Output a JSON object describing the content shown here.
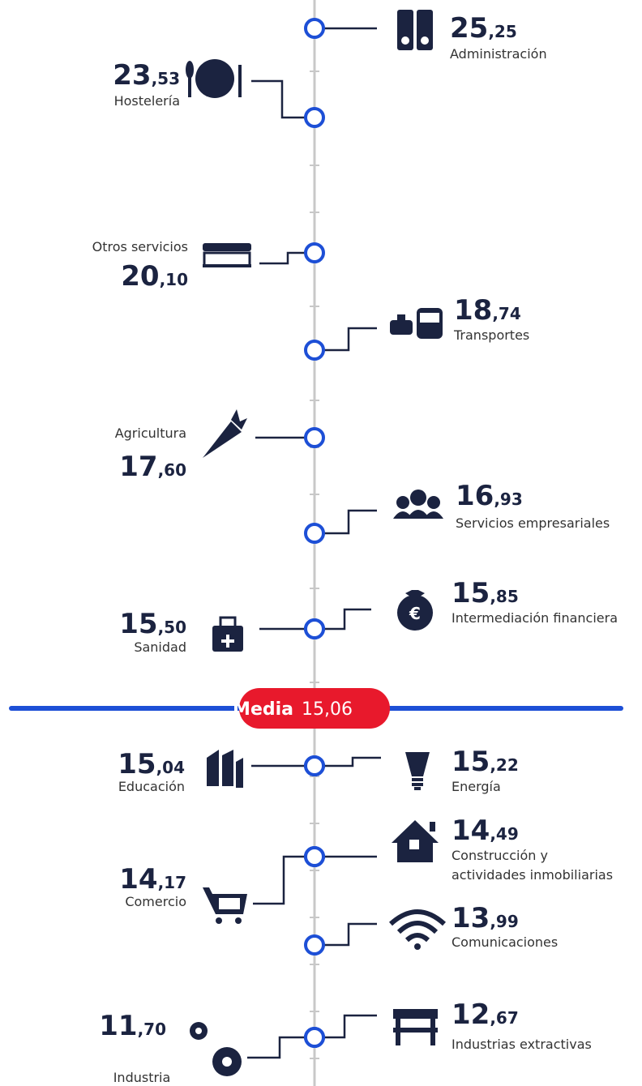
{
  "media": {
    "label": "Media",
    "value": "15,06"
  },
  "items": [
    {
      "label": "Administración",
      "value": "25,25"
    },
    {
      "label": "Hostelería",
      "value": "23,53"
    },
    {
      "label": "Otros servicios",
      "value": "20,10"
    },
    {
      "label": "Transportes",
      "value": "18,74"
    },
    {
      "label": "Agricultura",
      "value": "17,60"
    },
    {
      "label": "Servicios empresariales",
      "value": "16,93"
    },
    {
      "label": "Sanidad",
      "value": "15,50"
    },
    {
      "label": "Intermediación financiera",
      "value": "15,85"
    },
    {
      "label": "Educación",
      "value": "15,04"
    },
    {
      "label": "Energía",
      "value": "15,22"
    },
    {
      "label": [
        "Construcción y",
        "actividades inmobiliarias"
      ],
      "value": "14,49"
    },
    {
      "label": "Comercio",
      "value": "14,17"
    },
    {
      "label": "Comunicaciones",
      "value": "13,99"
    },
    {
      "label": "Industrias extractivas",
      "value": "12,67"
    },
    {
      "label": "Industria",
      "value": "11,70"
    }
  ]
}
